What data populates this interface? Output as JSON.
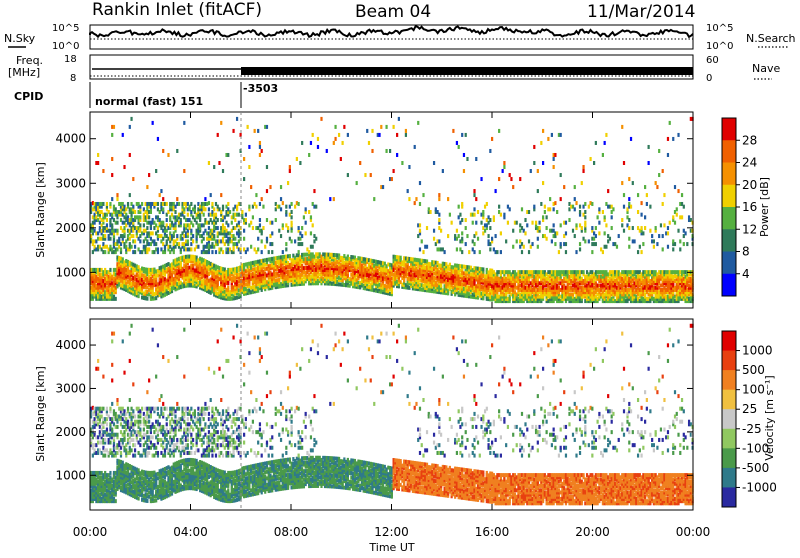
{
  "header": {
    "station": "Rankin Inlet (fitACF)",
    "beam": "Beam 04",
    "date": "11/Mar/2014"
  },
  "summary": {
    "nsky_label": "N.Sky",
    "nsearch_label": "N.Search",
    "nsky_ticks": [
      "10^5",
      "10^0"
    ],
    "nsearch_ticks": [
      "10^5",
      "10^0"
    ],
    "freq_label": "Freq.",
    "freq_unit": "[MHz]",
    "freq_ticks": [
      "18",
      "8"
    ],
    "nave_label": "Nave",
    "nave_ticks": [
      "60",
      "0"
    ],
    "cpid_label": "CPID",
    "cpid_segments": [
      "normal (fast) 151",
      "-3503"
    ]
  },
  "colors": {
    "power_scale": [
      "#0000ff",
      "#1f5aa0",
      "#2f7a5a",
      "#55b040",
      "#f0d000",
      "#f59000",
      "#f06000",
      "#e00000"
    ],
    "velocity_scale": [
      "#2a2aa0",
      "#2f7a8a",
      "#4a9a4a",
      "#90c860",
      "#c8c8c8",
      "#f0c040",
      "#f08020",
      "#e84010",
      "#e00000"
    ]
  },
  "chart_data": [
    {
      "type": "heatmap",
      "panel": "power",
      "ylabel": "Slant Range [km]",
      "ylim": [
        200,
        4600
      ],
      "yticks": [
        1000,
        2000,
        3000,
        4000
      ],
      "xlabel": "Time UT",
      "xlim": [
        0,
        24
      ],
      "xticks": [
        "00:00",
        "04:00",
        "08:00",
        "12:00",
        "16:00",
        "20:00",
        "00:00"
      ],
      "colorbar": {
        "label": "Power [dB]",
        "ticks": [
          "28",
          "24",
          "20",
          "16",
          "12",
          "8",
          "4"
        ],
        "range": [
          0,
          30
        ]
      }
    },
    {
      "type": "heatmap",
      "panel": "velocity",
      "ylabel": "Slant Range [km]",
      "ylim": [
        200,
        4600
      ],
      "yticks": [
        1000,
        2000,
        3000,
        4000
      ],
      "xlabel": "Time UT",
      "xlim": [
        0,
        24
      ],
      "xticks": [
        "00:00",
        "04:00",
        "08:00",
        "12:00",
        "16:00",
        "20:00",
        "00:00"
      ],
      "colorbar": {
        "label": "Velocity [m s⁻¹]",
        "ticks": [
          "1000",
          "500",
          "100",
          "25",
          "-25",
          "-100",
          "-500",
          "-1000"
        ],
        "range": [
          -1000,
          1000
        ]
      }
    }
  ]
}
